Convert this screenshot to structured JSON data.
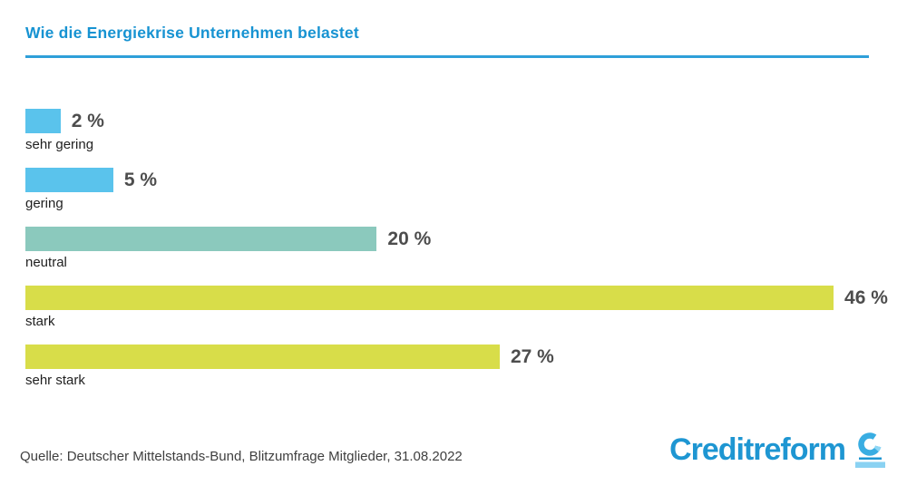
{
  "header": {
    "title": "Wie die Energiekrise Unternehmen belastet"
  },
  "chart_data": {
    "type": "bar",
    "orientation": "horizontal",
    "title": "Wie die Energiekrise Unternehmen belastet",
    "categories": [
      "sehr gering",
      "gering",
      "neutral",
      "stark",
      "sehr stark"
    ],
    "values": [
      2,
      5,
      20,
      46,
      27
    ],
    "value_labels": [
      "2 %",
      "5 %",
      "20 %",
      "46 %",
      "27 %"
    ],
    "unit": "%",
    "bar_colors": [
      "#5ac3ec",
      "#5ac3ec",
      "#8bc9bd",
      "#d8dd49",
      "#d8dd49"
    ],
    "xlabel": "",
    "ylabel": "",
    "xlim": [
      0,
      48
    ],
    "grid": false,
    "axis_visible": false,
    "legend": "none",
    "value_label_position": "right-of-bar",
    "category_label_position": "below-bar"
  },
  "footer": {
    "source": "Quelle: Deutscher Mittelstands-Bund, Blitzumfrage Mitglieder, 31.08.2022",
    "logo_text": "Creditreform"
  },
  "colors": {
    "title_blue": "#1793d2",
    "rule_blue": "#2f9fd9",
    "bar_blue": "#5ac3ec",
    "bar_teal": "#8bc9bd",
    "bar_yellowgreen": "#d8dd49",
    "value_gray": "#4d4d4d",
    "label_dark": "#1f1f1f",
    "source_gray": "#3f3f3f",
    "logo_blue": "#1e96d2",
    "logo_mark_blue": "#39ade2",
    "logo_mark_light_blue": "#8ad2f2"
  }
}
